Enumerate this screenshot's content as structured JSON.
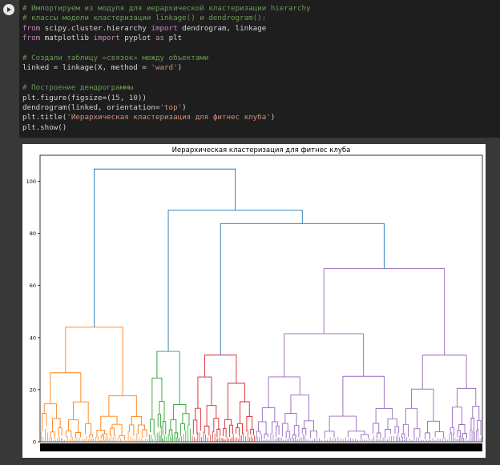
{
  "code": {
    "lines": [
      [
        {
          "c": "cm",
          "t": "# Импортируем из модуля для иерархической кластеризации hierarchy"
        }
      ],
      [
        {
          "c": "cm",
          "t": "# классы модели кластеризации linkage() и dendrogram():"
        }
      ],
      [
        {
          "c": "kw",
          "t": "from"
        },
        {
          "c": "df",
          "t": " scipy.cluster.hierarchy "
        },
        {
          "c": "kw",
          "t": "import"
        },
        {
          "c": "df",
          "t": " dendrogram, linkage"
        }
      ],
      [
        {
          "c": "kw",
          "t": "from"
        },
        {
          "c": "df",
          "t": " matplotlib "
        },
        {
          "c": "kw",
          "t": "import"
        },
        {
          "c": "df",
          "t": " pyplot "
        },
        {
          "c": "kw",
          "t": "as"
        },
        {
          "c": "df",
          "t": " plt"
        }
      ],
      [],
      [
        {
          "c": "cm",
          "t": "# Создали таблицу «связок» между объектами"
        }
      ],
      [
        {
          "c": "df",
          "t": "linked = linkage(X, method = "
        },
        {
          "c": "st",
          "t": "'ward'"
        },
        {
          "c": "df",
          "t": ")"
        }
      ],
      [],
      [
        {
          "c": "cm",
          "t": "# Построение дендрограммы"
        }
      ],
      [
        {
          "c": "df",
          "t": "plt.figure(figsize=("
        },
        {
          "c": "nm",
          "t": "15"
        },
        {
          "c": "df",
          "t": ", "
        },
        {
          "c": "nm",
          "t": "10"
        },
        {
          "c": "df",
          "t": "))"
        }
      ],
      [
        {
          "c": "df",
          "t": "dendrogram(linked, orientation="
        },
        {
          "c": "st",
          "t": "'top'"
        },
        {
          "c": "df",
          "t": ")"
        }
      ],
      [
        {
          "c": "df",
          "t": "plt.title("
        },
        {
          "c": "st",
          "t": "'Иерархическая кластеризация для фитнес клуба'"
        },
        {
          "c": "df",
          "t": ")"
        }
      ],
      [
        {
          "c": "df",
          "t": "plt.show()"
        }
      ]
    ]
  },
  "chart_data": {
    "type": "dendrogram",
    "title": "Иерархическая кластеризация для фитнес клуба",
    "xlabel": "",
    "ylabel": "",
    "ylim": [
      0,
      110
    ],
    "yticks": [
      0,
      20,
      40,
      60,
      80,
      100
    ],
    "ytick_labels": [
      "0",
      "20",
      "40",
      "60",
      "80",
      "100"
    ],
    "colors": {
      "cluster_orange": "#ff7f0e",
      "cluster_green": "#2ca02c",
      "cluster_red": "#d62728",
      "cluster_purple": "#9467bd",
      "link_above": "#1f77b4"
    },
    "clusters": [
      {
        "color": "#ff7f0e",
        "x_range": [
          0.0,
          0.246
        ],
        "top_height": 44.0
      },
      {
        "color": "#2ca02c",
        "x_range": [
          0.246,
          0.342
        ],
        "top_height": 34.7
      },
      {
        "color": "#d62728",
        "x_range": [
          0.342,
          0.486
        ],
        "top_height": 33.3
      },
      {
        "color": "#9467bd",
        "x_range": [
          0.486,
          1.0
        ],
        "top_height": 66.5
      }
    ],
    "merges": [
      {
        "height": 104.7,
        "left": "orange",
        "right": "green+red+purple"
      },
      {
        "height": 88.9,
        "left": "green",
        "right": "red+purple"
      },
      {
        "height": 83.8,
        "left": "red",
        "right": "purple"
      }
    ]
  }
}
